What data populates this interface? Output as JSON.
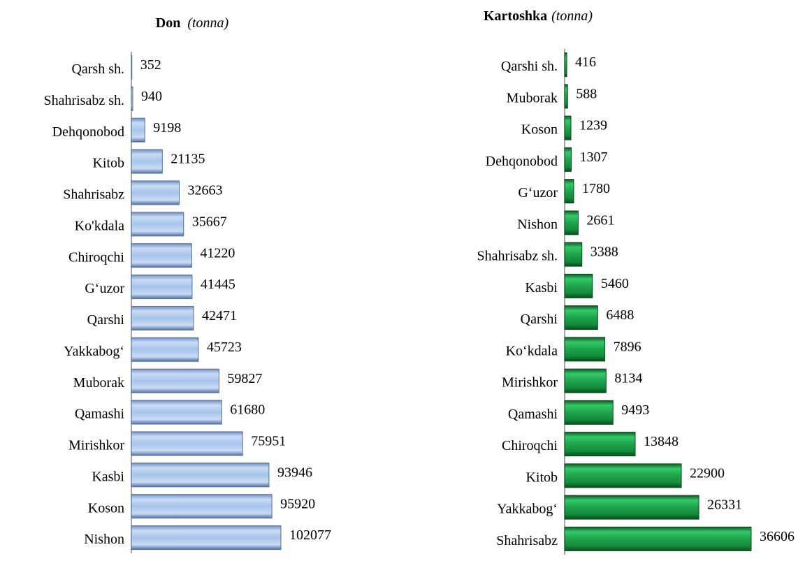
{
  "chart_data": [
    {
      "type": "bar",
      "orientation": "horizontal",
      "title": "Don",
      "unit": "(tonna)",
      "color": "#a8c3ea",
      "categories": [
        "Qarsh sh.",
        "Shahrisabz sh.",
        "Dehqonobod",
        "Kitob",
        "Shahrisabz",
        "Ko'kdala",
        "Chiroqchi",
        "G‘uzor",
        "Qarshi",
        "Yakkabog‘",
        "Muborak",
        "Qamashi",
        "Mirishkor",
        "Kasbi",
        "Koson",
        "Nishon"
      ],
      "values": [
        352,
        940,
        9198,
        21135,
        32663,
        35667,
        41220,
        41445,
        42471,
        45723,
        59827,
        61680,
        75951,
        93946,
        95920,
        102077
      ]
    },
    {
      "type": "bar",
      "orientation": "horizontal",
      "title": "Kartoshka",
      "unit": "(tonna)",
      "color": "#1fa34c",
      "categories": [
        "Qarshi sh.",
        "Muborak",
        "Koson",
        "Dehqonobod",
        "G‘uzor",
        "Nishon",
        "Shahrisabz sh.",
        "Kasbi",
        "Qarshi",
        "Ko‘kdala",
        "Mirishkor",
        "Qamashi",
        "Chiroqchi",
        "Kitob",
        "Yakkabog‘",
        "Shahrisabz"
      ],
      "values": [
        416,
        588,
        1239,
        1307,
        1780,
        2661,
        3388,
        5460,
        6488,
        7896,
        8134,
        9493,
        13848,
        22900,
        26331,
        36606
      ]
    }
  ]
}
